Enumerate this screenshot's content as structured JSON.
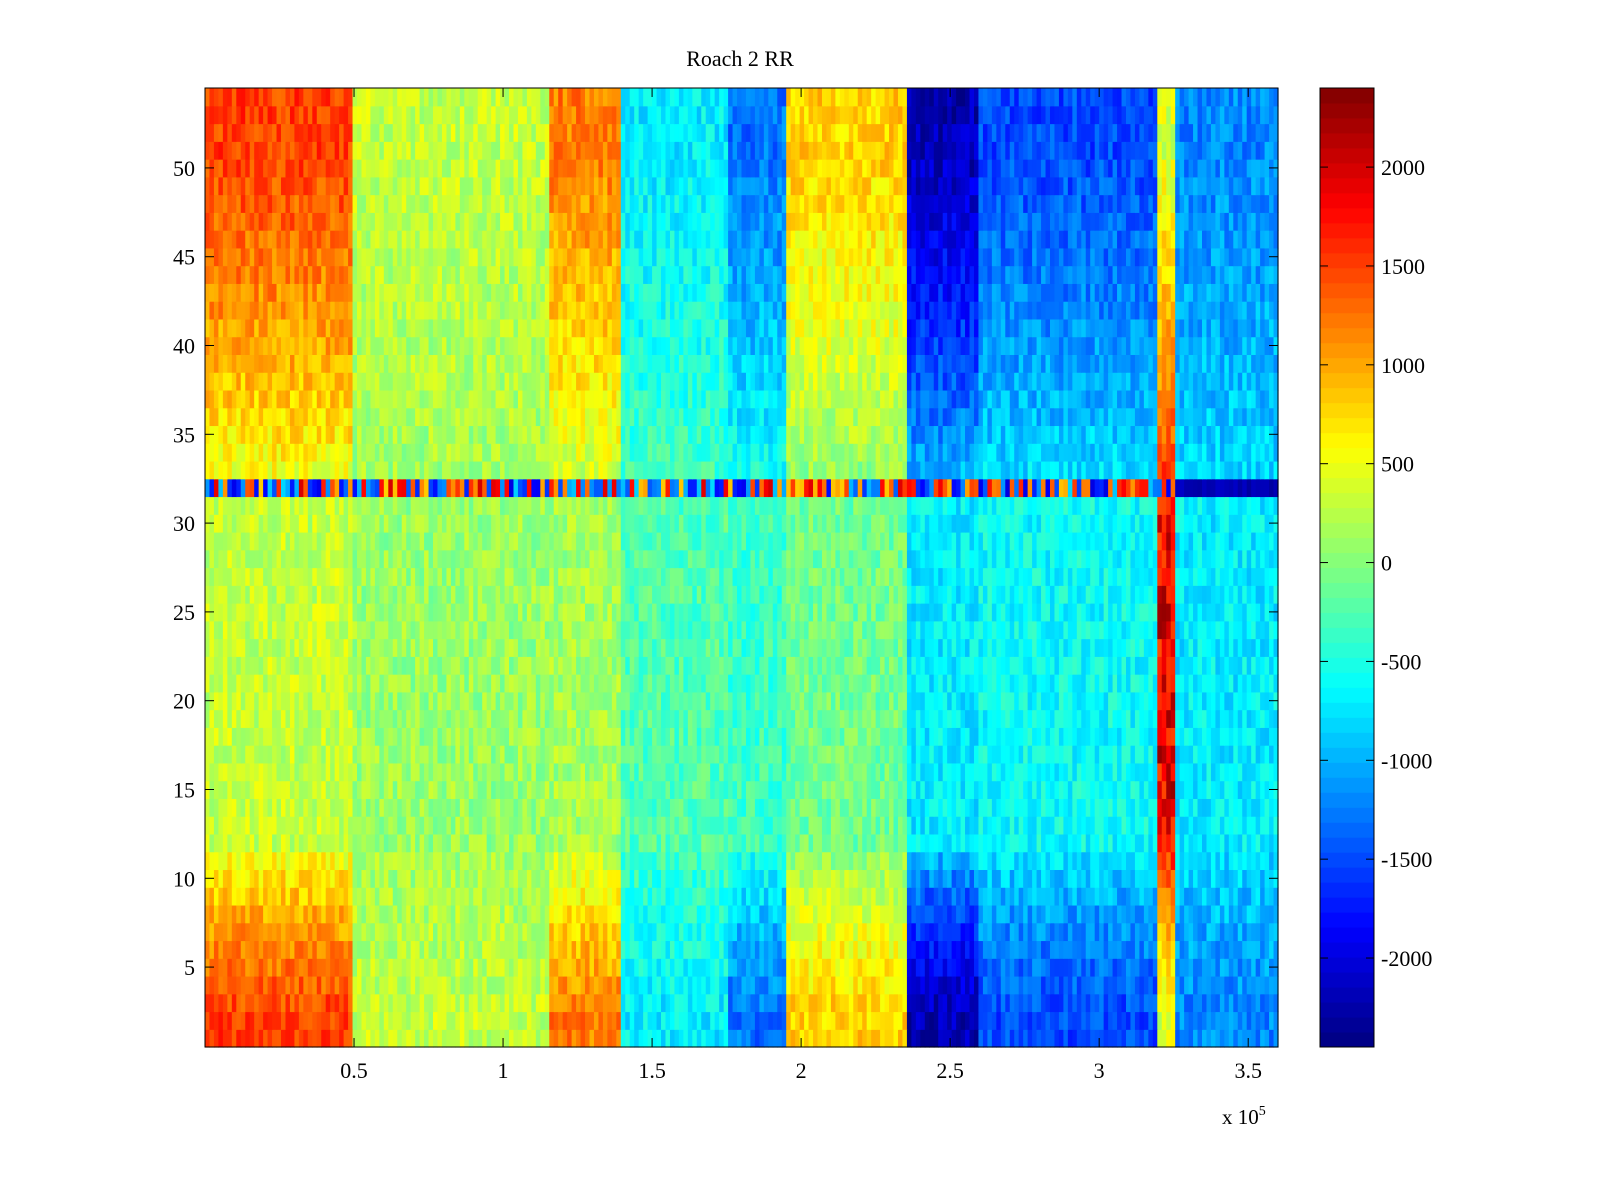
{
  "chart_data": {
    "type": "heatmap",
    "title": "Roach 2 RR",
    "xlabel": "",
    "ylabel": "",
    "x_exponent_label": "x 10",
    "x_exponent": "5",
    "xlim": [
      0,
      360000
    ],
    "ylim": [
      0.5,
      54.5
    ],
    "x_ticks": [
      0.5,
      1,
      1.5,
      2,
      2.5,
      3,
      3.5
    ],
    "x_tick_labels": [
      "0.5",
      "1",
      "1.5",
      "2",
      "2.5",
      "3",
      "3.5"
    ],
    "y_ticks": [
      5,
      10,
      15,
      20,
      25,
      30,
      35,
      40,
      45,
      50
    ],
    "y_tick_labels": [
      "5",
      "10",
      "15",
      "20",
      "25",
      "30",
      "35",
      "40",
      "45",
      "50"
    ],
    "colorbar": {
      "colormap": "jet",
      "clim": [
        -2450,
        2400
      ],
      "ticks": [
        2000,
        1500,
        1000,
        500,
        0,
        -500,
        -1000,
        -1500,
        -2000
      ],
      "tick_labels": [
        "2000",
        "1500",
        "1000",
        "500",
        "0",
        "-500",
        "-1000",
        "-1500",
        "-2000"
      ]
    },
    "rows": 54,
    "x_regions_1e5": [
      {
        "range": [
          0.0,
          0.5
        ],
        "edge_value": 1500,
        "center_value": 300
      },
      {
        "range": [
          0.5,
          1.15
        ],
        "edge_value": 300,
        "center_value": 100
      },
      {
        "range": [
          1.15,
          1.4
        ],
        "edge_value": 1200,
        "center_value": 150
      },
      {
        "range": [
          1.4,
          1.75
        ],
        "edge_value": -700,
        "center_value": -250
      },
      {
        "range": [
          1.75,
          1.95
        ],
        "edge_value": -1300,
        "center_value": -350
      },
      {
        "range": [
          1.95,
          2.35
        ],
        "edge_value": 800,
        "center_value": -100
      },
      {
        "range": [
          2.35,
          2.6
        ],
        "edge_value": -2200,
        "center_value": -700
      },
      {
        "range": [
          2.6,
          3.2
        ],
        "edge_value": -1500,
        "center_value": -600
      },
      {
        "range": [
          3.2,
          3.25
        ],
        "edge_value": 400,
        "center_value": 1800
      },
      {
        "range": [
          3.25,
          3.6
        ],
        "edge_value": -1200,
        "center_value": -700
      }
    ],
    "notable_row": {
      "y": 32,
      "pattern": "alternating strong red and dark blue streak across full width"
    },
    "colors": {
      "frame": "#000000",
      "background": "#ffffff"
    }
  }
}
